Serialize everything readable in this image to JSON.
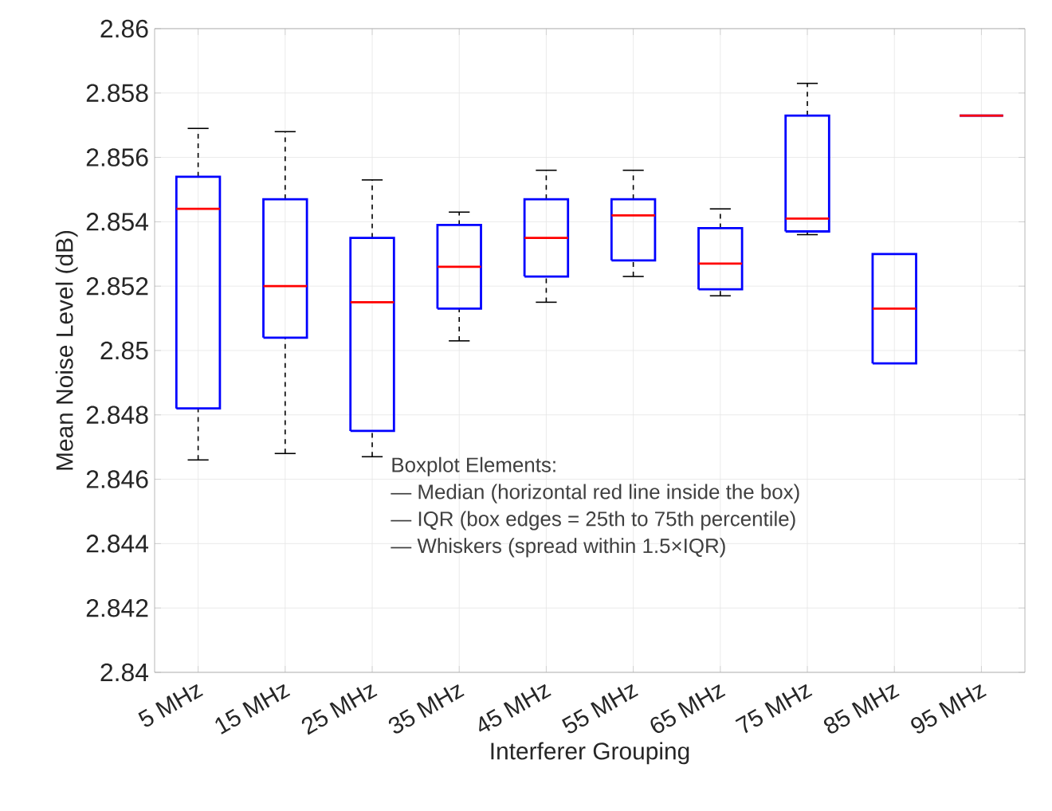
{
  "chart_data": {
    "type": "box",
    "xlabel": "Interferer Grouping",
    "ylabel": "Mean Noise Level (dB)",
    "categories": [
      "5 MHz",
      "15 MHz",
      "25 MHz",
      "35 MHz",
      "45 MHz",
      "55 MHz",
      "65 MHz",
      "75 MHz",
      "85 MHz",
      "95 MHz"
    ],
    "color": "#0000ff",
    "boxes": [
      {
        "low": 2.8466,
        "q1": 2.8482,
        "median": 2.8544,
        "q3": 2.8554,
        "high": 2.8569
      },
      {
        "low": 2.8468,
        "q1": 2.8504,
        "median": 2.852,
        "q3": 2.8547,
        "high": 2.8568
      },
      {
        "low": 2.8467,
        "q1": 2.8475,
        "median": 2.8515,
        "q3": 2.8535,
        "high": 2.8553
      },
      {
        "low": 2.8503,
        "q1": 2.8513,
        "median": 2.8526,
        "q3": 2.8539,
        "high": 2.8543
      },
      {
        "low": 2.8515,
        "q1": 2.8523,
        "median": 2.8535,
        "q3": 2.8547,
        "high": 2.8556
      },
      {
        "low": 2.8523,
        "q1": 2.8528,
        "median": 2.8542,
        "q3": 2.8547,
        "high": 2.8556
      },
      {
        "low": 2.8517,
        "q1": 2.8519,
        "median": 2.8527,
        "q3": 2.8538,
        "high": 2.8544
      },
      {
        "low": 2.8536,
        "q1": 2.8537,
        "median": 2.8541,
        "q3": 2.8573,
        "high": 2.8583
      },
      {
        "low": 2.8496,
        "q1": 2.8496,
        "median": 2.8513,
        "q3": 2.853,
        "high": 2.853
      },
      {
        "low": 2.8573,
        "q1": 2.8573,
        "median": 2.8573,
        "q3": 2.8573,
        "high": 2.8573
      }
    ],
    "ylim": [
      2.84,
      2.86
    ],
    "yticks": [
      2.84,
      2.842,
      2.844,
      2.846,
      2.848,
      2.85,
      2.852,
      2.854,
      2.856,
      2.858,
      2.86
    ],
    "grid": true,
    "annotations": [
      "Boxplot Elements:",
      "— Median (horizontal red line inside the box)",
      "— IQR (box edges = 25th to 75th percentile)",
      "— Whiskers (spread within 1.5×IQR)"
    ]
  }
}
